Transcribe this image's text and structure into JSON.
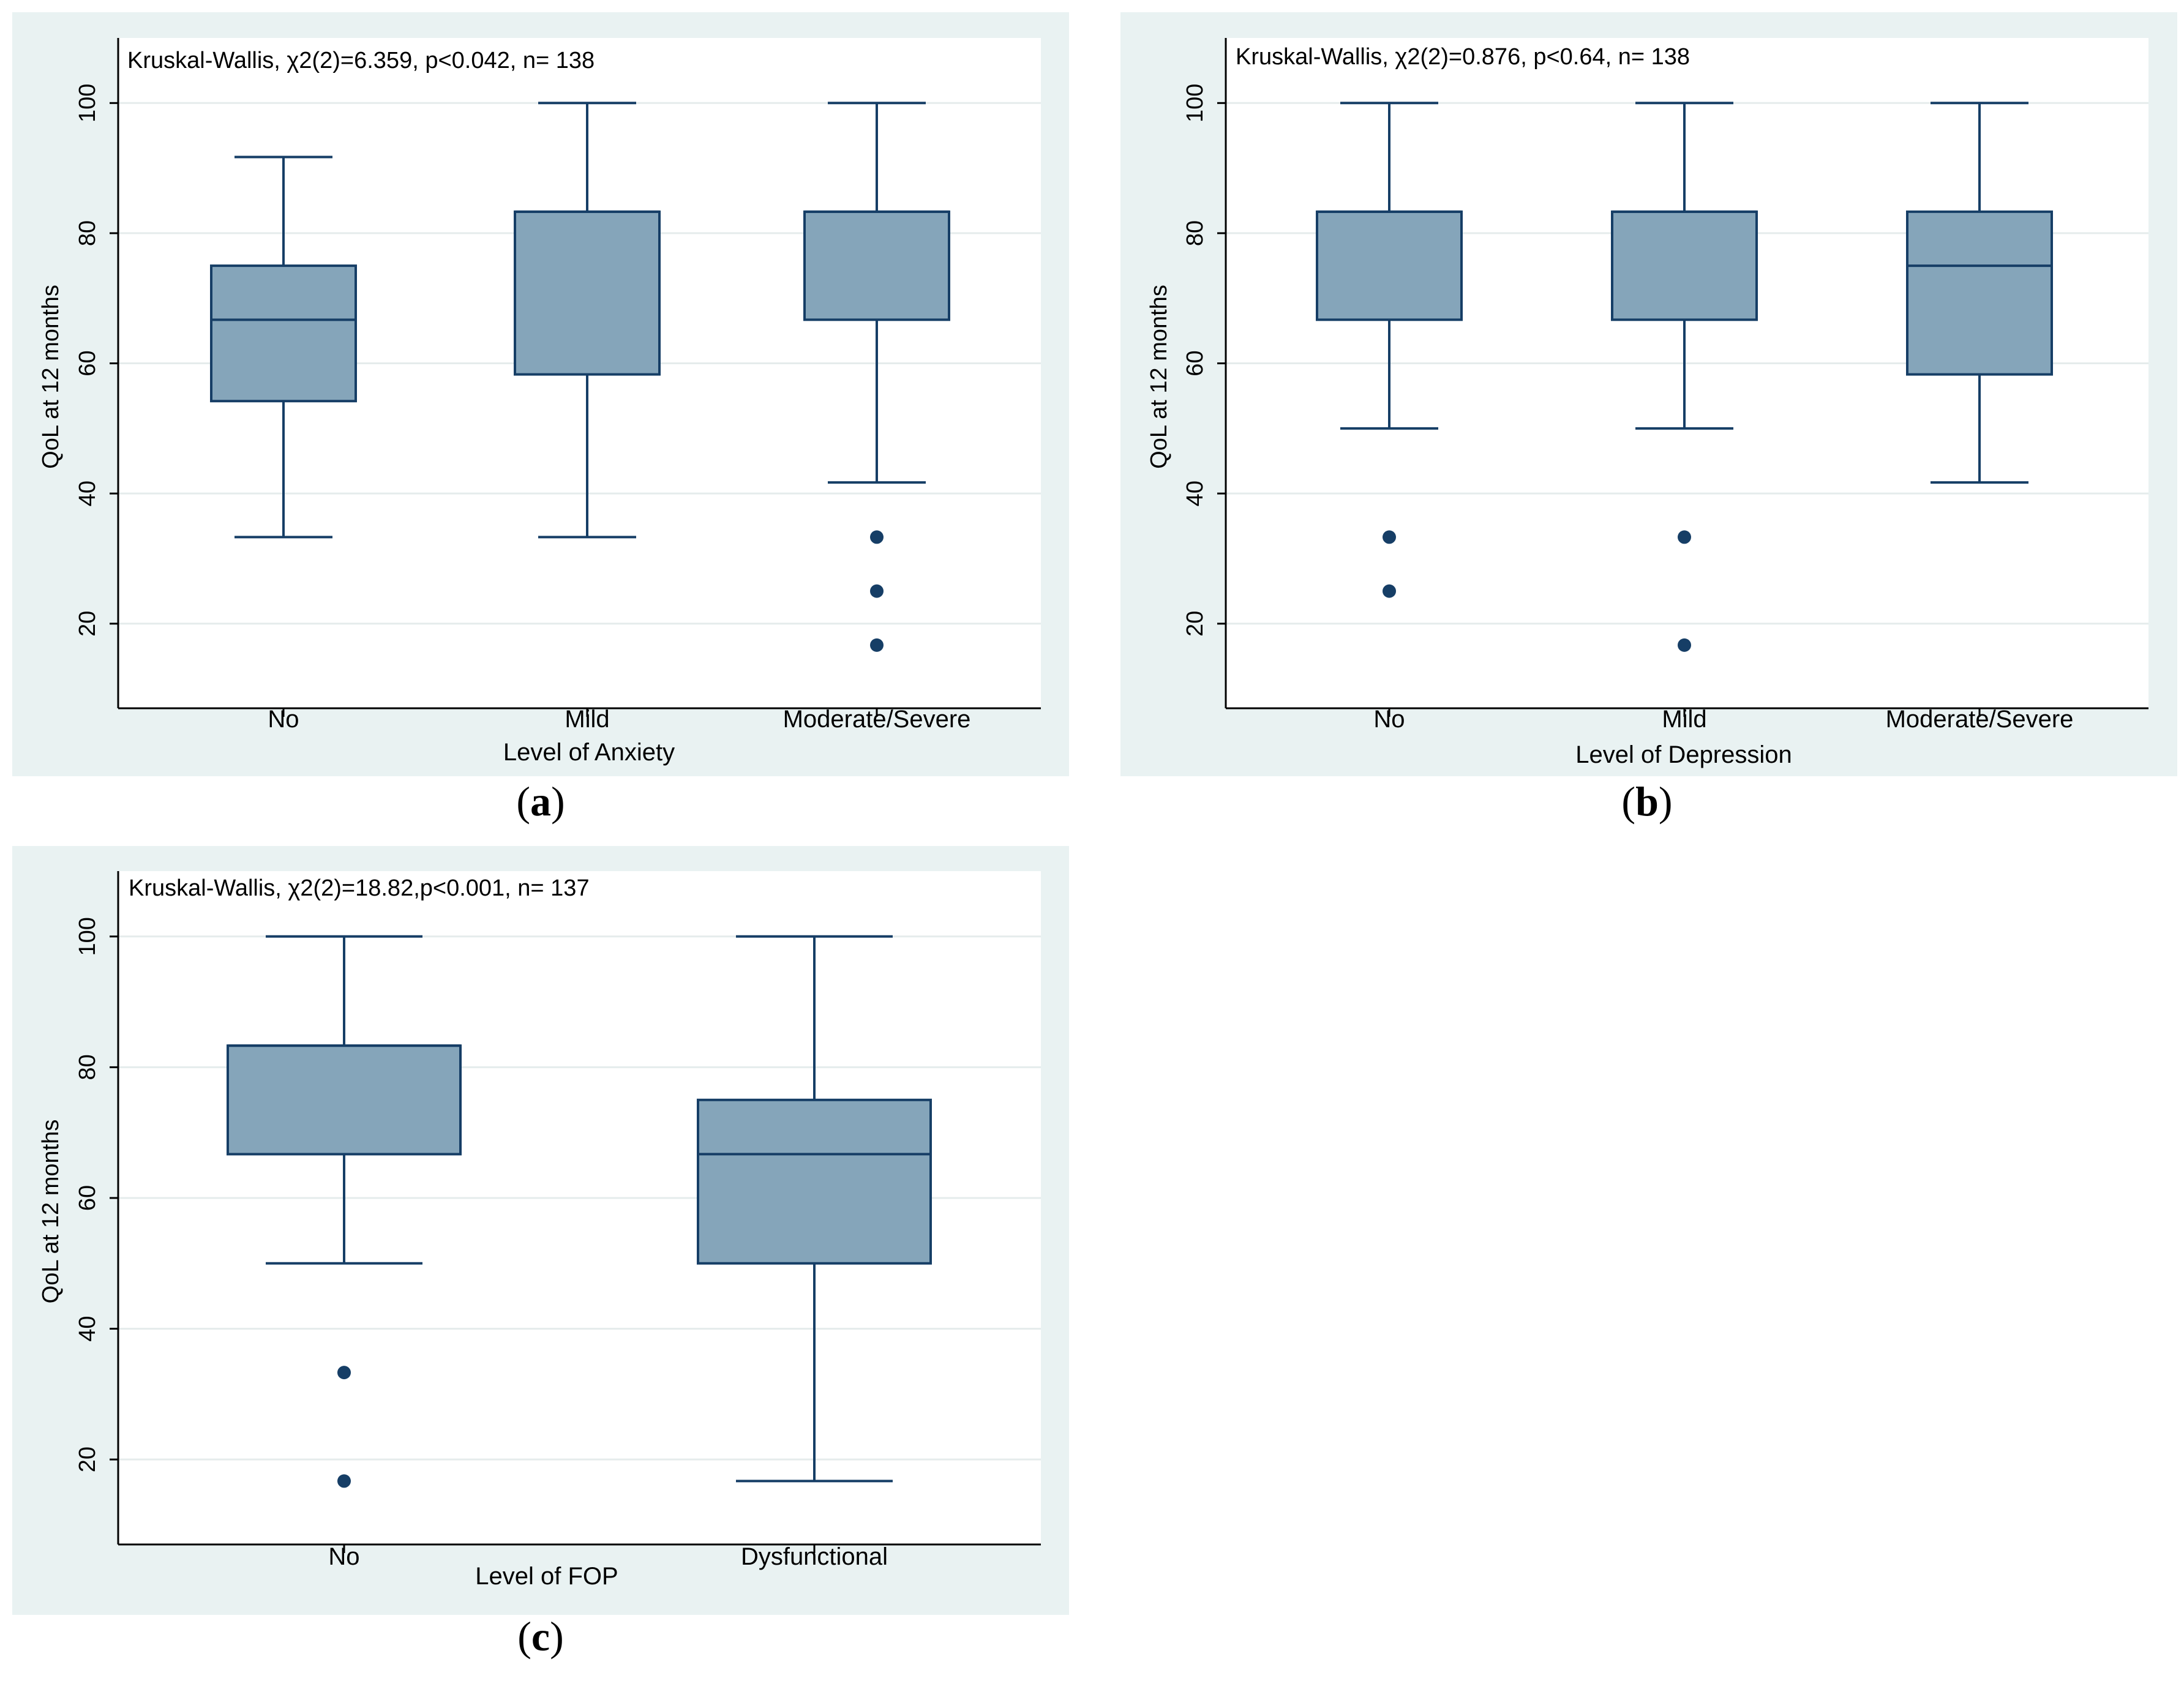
{
  "colors": {
    "panel_bg": "#e9f2f2",
    "box_fill": "#85a5ba",
    "box_stroke": "#163e66",
    "outlier": "#163e66",
    "grid": "#e5ecec"
  },
  "chart_data": [
    {
      "id": "a",
      "type": "box",
      "caption": {
        "open": "(",
        "letter": "a",
        "close": ")"
      },
      "annotation": "Kruskal-Wallis, χ2(2)=6.359, p<0.042, n= 138",
      "xlabel": "Level of Anxiety",
      "ylabel": "QoL at 12 months",
      "ylim": [
        7,
        110
      ],
      "yticks": [
        20,
        40,
        60,
        80,
        100
      ],
      "categories": [
        "No",
        "Mild",
        "Moderate/Severe"
      ],
      "boxes": [
        {
          "min": 33.3,
          "q1": 54.2,
          "median": 66.7,
          "q3": 75,
          "max": 91.7,
          "outliers": []
        },
        {
          "min": 33.3,
          "q1": 58.3,
          "median": 83.3,
          "q3": 83.3,
          "max": 100,
          "outliers": []
        },
        {
          "min": 41.7,
          "q1": 66.7,
          "median": 83.3,
          "q3": 83.3,
          "max": 100,
          "outliers": [
            33.3,
            25,
            16.7
          ]
        }
      ]
    },
    {
      "id": "b",
      "type": "box",
      "caption": {
        "open": "(",
        "letter": "b",
        "close": ")"
      },
      "annotation": "Kruskal-Wallis, χ2(2)=0.876, p<0.64, n= 138",
      "xlabel": "Level of Depression",
      "ylabel": "QoL at 12 months",
      "ylim": [
        7,
        110
      ],
      "yticks": [
        20,
        40,
        60,
        80,
        100
      ],
      "categories": [
        "No",
        "Mild",
        "Moderate/Severe"
      ],
      "boxes": [
        {
          "min": 50,
          "q1": 66.7,
          "median": 83.3,
          "q3": 83.3,
          "max": 100,
          "outliers": [
            33.3,
            25
          ]
        },
        {
          "min": 50,
          "q1": 66.7,
          "median": 83.3,
          "q3": 83.3,
          "max": 100,
          "outliers": [
            33.3,
            16.7
          ]
        },
        {
          "min": 41.7,
          "q1": 58.3,
          "median": 75,
          "q3": 83.3,
          "max": 100,
          "outliers": []
        }
      ]
    },
    {
      "id": "c",
      "type": "box",
      "caption": {
        "open": "(",
        "letter": "c",
        "close": ")"
      },
      "annotation": "Kruskal-Wallis, χ2(2)=18.82,p<0.001, n= 137",
      "xlabel": "Level of FOP",
      "ylabel": "QoL at 12 months",
      "ylim": [
        7,
        110
      ],
      "yticks": [
        20,
        40,
        60,
        80,
        100
      ],
      "categories": [
        "No",
        "Dysfunctional"
      ],
      "boxes": [
        {
          "min": 50,
          "q1": 66.7,
          "median": 83.3,
          "q3": 83.3,
          "max": 100,
          "outliers": [
            33.3,
            16.7
          ]
        },
        {
          "min": 16.7,
          "q1": 50,
          "median": 66.7,
          "q3": 75,
          "max": 100,
          "outliers": []
        }
      ]
    }
  ]
}
